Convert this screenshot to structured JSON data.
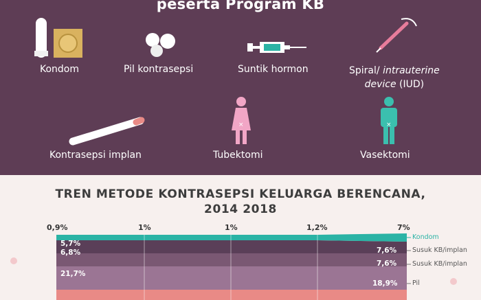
{
  "header": {
    "title": "peserta Program KB"
  },
  "methods": [
    {
      "label": "Kondom",
      "icon": "condom-icon"
    },
    {
      "label": "Pil kontrasepsi",
      "icon": "pill-icon"
    },
    {
      "label": "Suntik hormon",
      "icon": "syringe-icon"
    },
    {
      "label": "Spiral/ ",
      "label_italic": "intrauterine",
      "label_line2_italic": "device",
      "label_line2": " (IUD)",
      "icon": "iud-icon"
    },
    {
      "label": "Kontrasepsi implan",
      "icon": "implant-icon"
    },
    {
      "label": "Tubektomi",
      "icon": "female-figure-icon"
    },
    {
      "label": "Vasektomi",
      "icon": "male-figure-icon"
    }
  ],
  "chart_data": {
    "type": "area",
    "title": "TREN METODE KONTRASEPSI KELUARGA BERENCANA,",
    "subtitle": "2014 2018",
    "top_labels": [
      "0,9%",
      "1%",
      "1%",
      "1,2%",
      "7%"
    ],
    "value_labels_left": [
      "5,7%",
      "6,8%",
      "21,7%"
    ],
    "value_labels_right": [
      "7,6%",
      "7,6%",
      "18,9%"
    ],
    "series": [
      {
        "name": "Kondom",
        "start": 0.9,
        "end": 7,
        "color": "#2bb3a5"
      },
      {
        "name": "Susuk KB/implan",
        "start": 5.7,
        "end": 7.6,
        "color": "#5a3f58"
      },
      {
        "name": "Susuk KB/implan",
        "start": 6.8,
        "end": 7.6,
        "color": "#7a5873"
      },
      {
        "name": "Pil",
        "start": 21.7,
        "end": 18.9,
        "color": "#9b7594"
      }
    ],
    "colors": {
      "bg": "#f7f0ee",
      "pink_band": "#e98a86"
    }
  }
}
